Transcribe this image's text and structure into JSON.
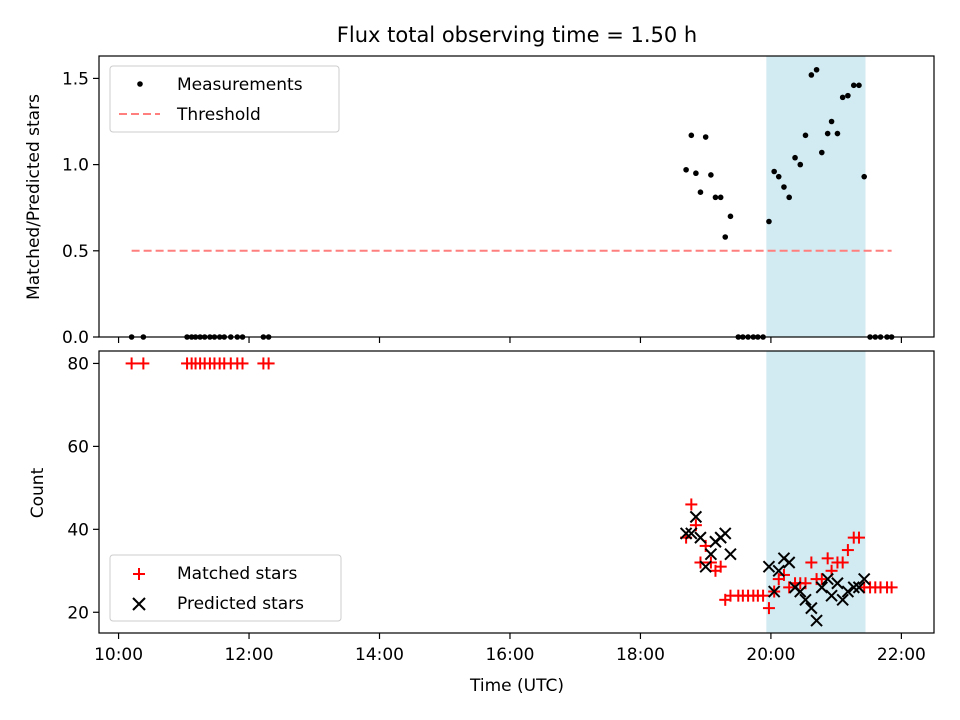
{
  "chart_data": [
    {
      "type": "scatter",
      "title": "Flux total observing time = 1.50 h",
      "xlabel": "",
      "ylabel": "Matched/Predicted stars",
      "x_unit": "hours UTC",
      "xlim": [
        9.7,
        22.5
      ],
      "ylim": [
        0,
        1.63
      ],
      "yticks": [
        0.0,
        0.5,
        1.0,
        1.5
      ],
      "ytick_labels": [
        "0.0",
        "0.5",
        "1.0",
        "1.5"
      ],
      "highlight_span": {
        "x": [
          19.93,
          21.45
        ],
        "color": "#add8e6"
      },
      "legend": {
        "position": "top-left",
        "entries": [
          "Measurements",
          "Threshold"
        ]
      },
      "series": [
        {
          "name": "Measurements",
          "kind": "scatter",
          "marker": "dot",
          "color": "#000000",
          "points": [
            [
              10.2,
              0
            ],
            [
              10.38,
              0
            ],
            [
              11.05,
              0
            ],
            [
              11.12,
              0
            ],
            [
              11.18,
              0
            ],
            [
              11.25,
              0
            ],
            [
              11.32,
              0
            ],
            [
              11.4,
              0
            ],
            [
              11.47,
              0
            ],
            [
              11.55,
              0
            ],
            [
              11.62,
              0
            ],
            [
              11.72,
              0
            ],
            [
              11.82,
              0
            ],
            [
              11.9,
              0
            ],
            [
              12.22,
              0
            ],
            [
              12.3,
              0
            ],
            [
              18.7,
              0.97
            ],
            [
              18.78,
              1.17
            ],
            [
              18.85,
              0.95
            ],
            [
              18.92,
              0.84
            ],
            [
              19.0,
              1.16
            ],
            [
              19.08,
              0.94
            ],
            [
              19.15,
              0.81
            ],
            [
              19.23,
              0.81
            ],
            [
              19.3,
              0.58
            ],
            [
              19.38,
              0.7
            ],
            [
              19.5,
              0
            ],
            [
              19.57,
              0
            ],
            [
              19.65,
              0
            ],
            [
              19.73,
              0
            ],
            [
              19.8,
              0
            ],
            [
              19.88,
              0
            ],
            [
              19.97,
              0.67
            ],
            [
              20.05,
              0.96
            ],
            [
              20.12,
              0.93
            ],
            [
              20.2,
              0.87
            ],
            [
              20.28,
              0.81
            ],
            [
              20.37,
              1.04
            ],
            [
              20.45,
              1.0
            ],
            [
              20.53,
              1.17
            ],
            [
              20.62,
              1.52
            ],
            [
              20.7,
              1.55
            ],
            [
              20.78,
              1.07
            ],
            [
              20.87,
              1.18
            ],
            [
              20.93,
              1.25
            ],
            [
              21.02,
              1.18
            ],
            [
              21.1,
              1.39
            ],
            [
              21.18,
              1.4
            ],
            [
              21.27,
              1.46
            ],
            [
              21.35,
              1.46
            ],
            [
              21.43,
              0.93
            ],
            [
              21.52,
              0
            ],
            [
              21.6,
              0
            ],
            [
              21.68,
              0
            ],
            [
              21.78,
              0
            ],
            [
              21.85,
              0
            ]
          ]
        },
        {
          "name": "Threshold",
          "kind": "line",
          "style": "dashed",
          "color": "#ff7f7f",
          "points": [
            [
              10.2,
              0.5
            ],
            [
              21.85,
              0.5
            ]
          ]
        }
      ]
    },
    {
      "type": "scatter",
      "title": "",
      "xlabel": "Time (UTC)",
      "ylabel": "Count",
      "x_unit": "hours UTC",
      "xlim": [
        9.7,
        22.5
      ],
      "ylim": [
        15,
        83
      ],
      "yticks": [
        20,
        40,
        60,
        80
      ],
      "ytick_labels": [
        "20",
        "40",
        "60",
        "80"
      ],
      "xticks": [
        10,
        12,
        14,
        16,
        18,
        20,
        22
      ],
      "xtick_labels": [
        "10:00",
        "12:00",
        "14:00",
        "16:00",
        "18:00",
        "20:00",
        "22:00"
      ],
      "highlight_span": {
        "x": [
          19.93,
          21.45
        ],
        "color": "#add8e6"
      },
      "legend": {
        "position": "bottom-left",
        "entries": [
          "Matched stars",
          "Predicted stars"
        ]
      },
      "series": [
        {
          "name": "Matched stars",
          "marker": "plus",
          "color": "#ff0000",
          "points": [
            [
              10.2,
              80
            ],
            [
              10.38,
              80
            ],
            [
              11.05,
              80
            ],
            [
              11.12,
              80
            ],
            [
              11.18,
              80
            ],
            [
              11.25,
              80
            ],
            [
              11.32,
              80
            ],
            [
              11.4,
              80
            ],
            [
              11.47,
              80
            ],
            [
              11.55,
              80
            ],
            [
              11.62,
              80
            ],
            [
              11.72,
              80
            ],
            [
              11.82,
              80
            ],
            [
              11.9,
              80
            ],
            [
              12.22,
              80
            ],
            [
              12.3,
              80
            ],
            [
              18.7,
              38
            ],
            [
              18.78,
              46
            ],
            [
              18.85,
              41
            ],
            [
              18.92,
              32
            ],
            [
              19.0,
              36
            ],
            [
              19.08,
              32
            ],
            [
              19.15,
              30
            ],
            [
              19.23,
              31
            ],
            [
              19.3,
              23
            ],
            [
              19.38,
              24
            ],
            [
              19.5,
              24
            ],
            [
              19.57,
              24
            ],
            [
              19.65,
              24
            ],
            [
              19.73,
              24
            ],
            [
              19.8,
              24
            ],
            [
              19.88,
              24
            ],
            [
              19.97,
              21
            ],
            [
              20.05,
              25
            ],
            [
              20.12,
              28
            ],
            [
              20.2,
              29
            ],
            [
              20.28,
              26
            ],
            [
              20.37,
              27
            ],
            [
              20.45,
              27
            ],
            [
              20.53,
              27
            ],
            [
              20.62,
              32
            ],
            [
              20.7,
              28
            ],
            [
              20.78,
              28
            ],
            [
              20.87,
              33
            ],
            [
              20.93,
              30
            ],
            [
              21.02,
              32
            ],
            [
              21.1,
              32
            ],
            [
              21.18,
              35
            ],
            [
              21.27,
              38
            ],
            [
              21.35,
              38
            ],
            [
              21.43,
              26
            ],
            [
              21.52,
              26
            ],
            [
              21.6,
              26
            ],
            [
              21.68,
              26
            ],
            [
              21.78,
              26
            ],
            [
              21.85,
              26
            ]
          ]
        },
        {
          "name": "Predicted stars",
          "marker": "x",
          "color": "#000000",
          "points": [
            [
              18.7,
              39
            ],
            [
              18.78,
              39
            ],
            [
              18.85,
              43
            ],
            [
              18.92,
              38
            ],
            [
              19.0,
              31
            ],
            [
              19.08,
              34
            ],
            [
              19.15,
              37
            ],
            [
              19.23,
              38
            ],
            [
              19.3,
              39
            ],
            [
              19.38,
              34
            ],
            [
              19.97,
              31
            ],
            [
              20.05,
              25
            ],
            [
              20.12,
              30
            ],
            [
              20.2,
              33
            ],
            [
              20.28,
              32
            ],
            [
              20.37,
              26
            ],
            [
              20.45,
              25
            ],
            [
              20.53,
              23
            ],
            [
              20.62,
              21
            ],
            [
              20.7,
              18
            ],
            [
              20.78,
              26
            ],
            [
              20.87,
              28
            ],
            [
              20.93,
              24
            ],
            [
              21.02,
              27
            ],
            [
              21.1,
              23
            ],
            [
              21.18,
              25
            ],
            [
              21.27,
              26
            ],
            [
              21.35,
              26
            ],
            [
              21.43,
              28
            ]
          ]
        }
      ]
    }
  ]
}
